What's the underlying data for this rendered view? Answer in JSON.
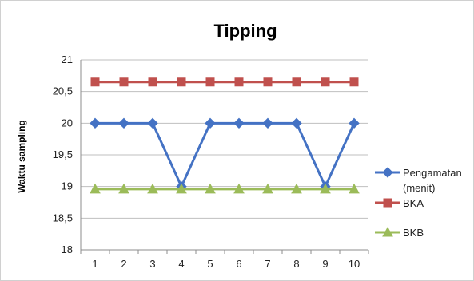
{
  "chart_data": {
    "type": "line",
    "title": "Tipping",
    "xlabel": "",
    "ylabel": "Waktu sampling",
    "x": [
      "1",
      "2",
      "3",
      "4",
      "5",
      "6",
      "7",
      "8",
      "9",
      "10"
    ],
    "yticks": [
      "18",
      "18,5",
      "19",
      "19,5",
      "20",
      "20,5",
      "21"
    ],
    "ylim": [
      18,
      21
    ],
    "grid": true,
    "legend_position": "right",
    "series": [
      {
        "name_lines": [
          "Pengamatan",
          "(menit)"
        ],
        "values": [
          20,
          20,
          20,
          19,
          20,
          20,
          20,
          20,
          19,
          20
        ],
        "color": "#4472C4",
        "marker": "diamond"
      },
      {
        "name_lines": [
          "BKA"
        ],
        "values": [
          20.65,
          20.65,
          20.65,
          20.65,
          20.65,
          20.65,
          20.65,
          20.65,
          20.65,
          20.65
        ],
        "color": "#C0504D",
        "marker": "square"
      },
      {
        "name_lines": [
          "BKB"
        ],
        "values": [
          18.96,
          18.96,
          18.96,
          18.96,
          18.96,
          18.96,
          18.96,
          18.96,
          18.96,
          18.96
        ],
        "color": "#9BBB59",
        "marker": "triangle"
      }
    ]
  }
}
